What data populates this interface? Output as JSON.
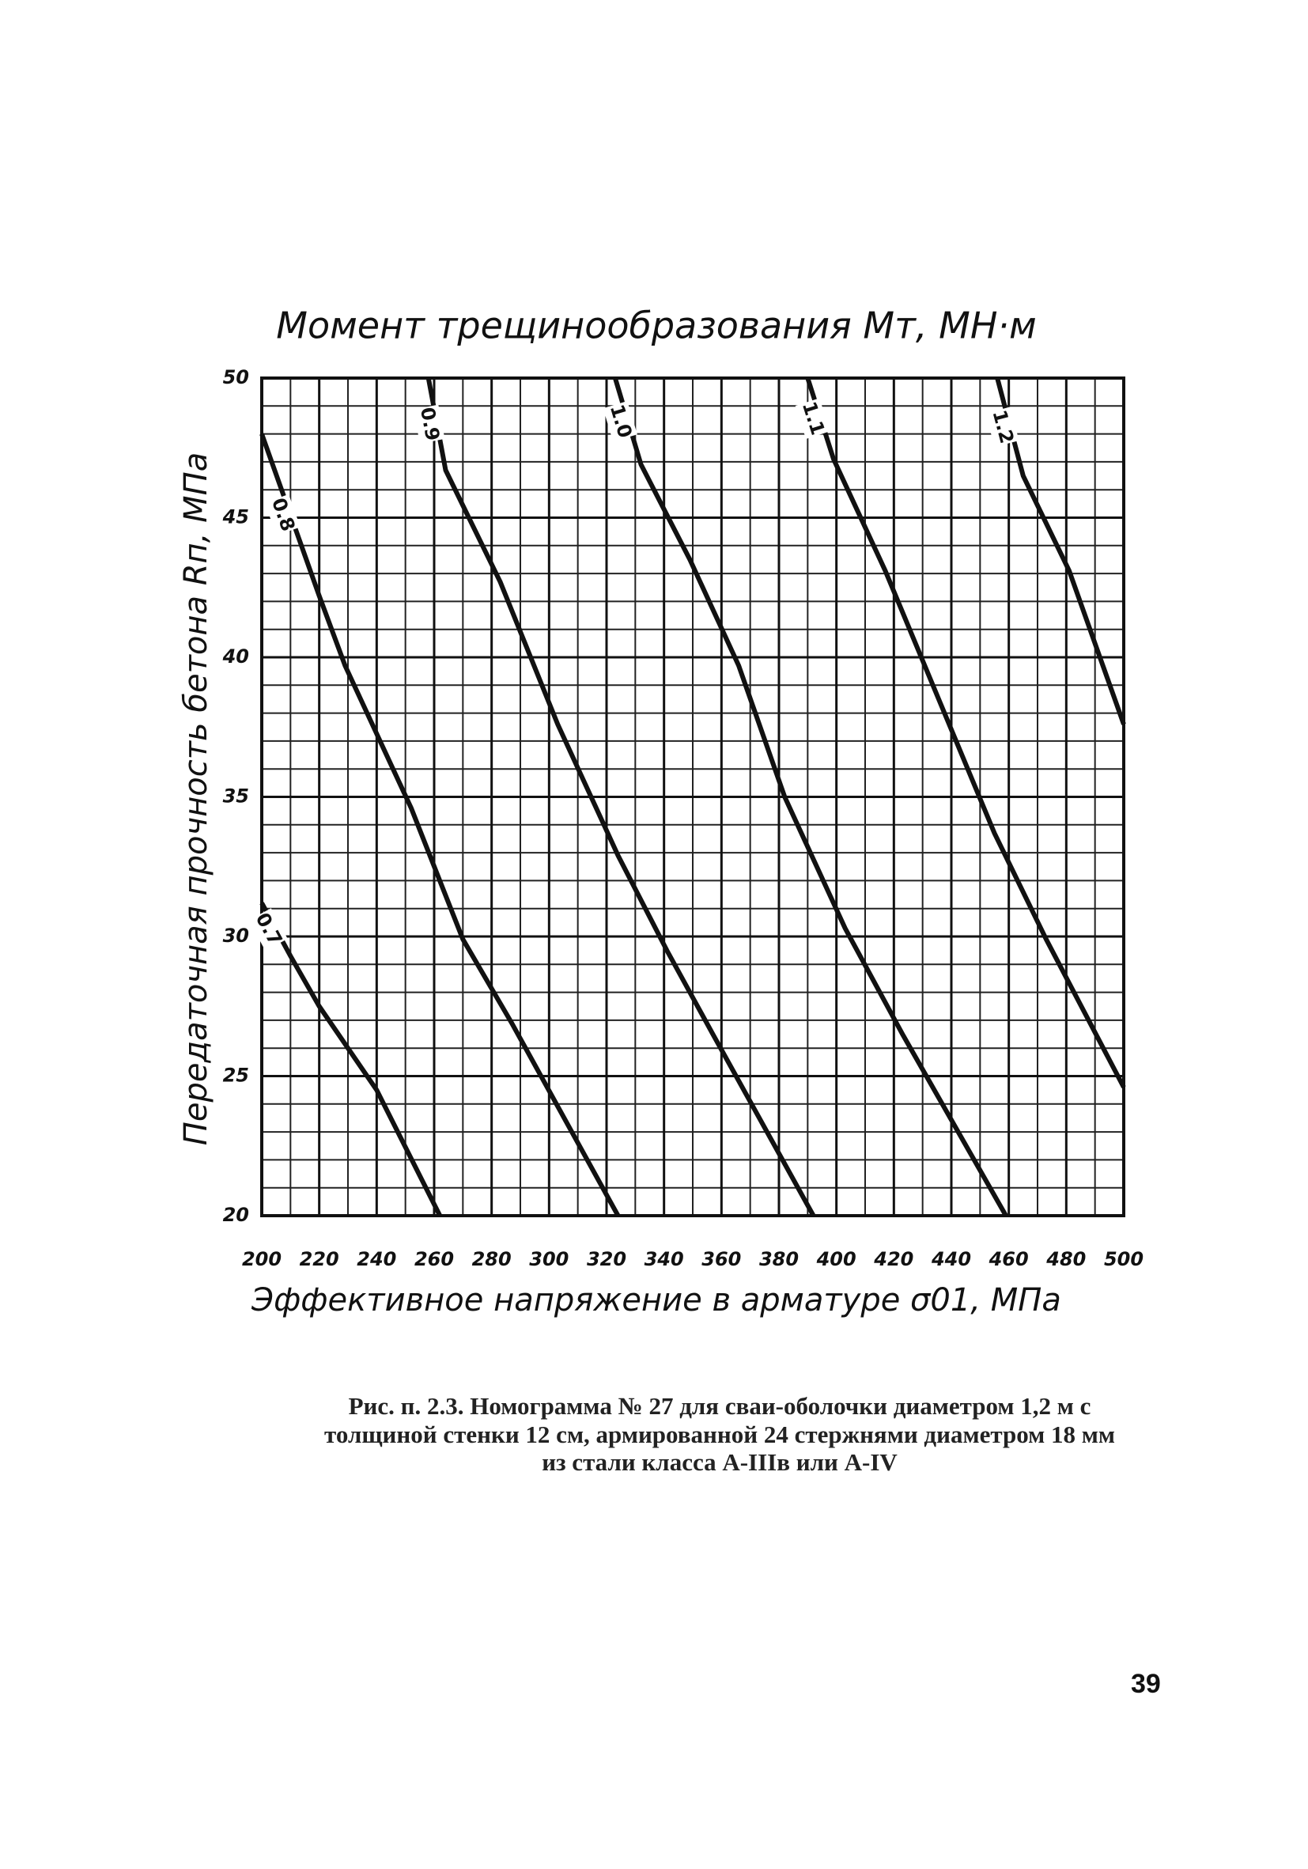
{
  "chart_data": {
    "type": "line",
    "title": "Момент трещинообразования Mт, МН·м",
    "x_label": "Эффективное напряжение в арматуре σ01, МПа",
    "y_label": "Передаточная прочность бетона Rп, МПа",
    "xlim": [
      200,
      500
    ],
    "ylim": [
      20,
      50
    ],
    "xticks": [
      200,
      220,
      240,
      260,
      280,
      300,
      320,
      340,
      360,
      380,
      400,
      420,
      440,
      460,
      480,
      500
    ],
    "yticks": [
      20,
      25,
      30,
      35,
      40,
      45,
      50
    ],
    "grid": true,
    "series": [
      {
        "name": "0.7",
        "color": "#111111",
        "x": [
          200,
          210,
          220,
          240,
          262
        ],
        "values": [
          31.2,
          29.3,
          27.5,
          24.5,
          20
        ]
      },
      {
        "name": "0.8",
        "color": "#111111",
        "x": [
          200,
          220,
          229,
          252,
          270,
          287,
          324
        ],
        "values": [
          48,
          42.2,
          39.7,
          34.6,
          29.9,
          26.9,
          20
        ]
      },
      {
        "name": "0.9",
        "color": "#111111",
        "x": [
          258,
          264,
          283,
          303,
          324,
          341,
          357,
          392
        ],
        "values": [
          50,
          46.7,
          42.7,
          37.6,
          32.9,
          29.5,
          26.5,
          20
        ]
      },
      {
        "name": "1.0",
        "color": "#111111",
        "x": [
          323,
          332,
          349,
          366,
          382,
          403,
          423,
          459
        ],
        "values": [
          50,
          46.9,
          43.5,
          39.7,
          35,
          30.3,
          26.5,
          20
        ]
      },
      {
        "name": "1.1",
        "color": "#111111",
        "x": [
          390,
          399,
          417,
          436,
          455,
          473,
          500
        ],
        "values": [
          50,
          47.1,
          43.1,
          38.4,
          33.7,
          29.9,
          24.6
        ]
      },
      {
        "name": "1.2",
        "color": "#111111",
        "x": [
          456,
          465,
          481,
          500
        ],
        "values": [
          50,
          46.5,
          43.1,
          37.6
        ]
      }
    ]
  },
  "caption": "Рис. п. 2.3. Номограмма № 27 для сваи-оболочки диаметром 1,2 м с толщиной стенки 12 см, армированной 24 стержнями диаметром 18 мм из стали класса А-IIIв или А-IV",
  "page_number": "39"
}
